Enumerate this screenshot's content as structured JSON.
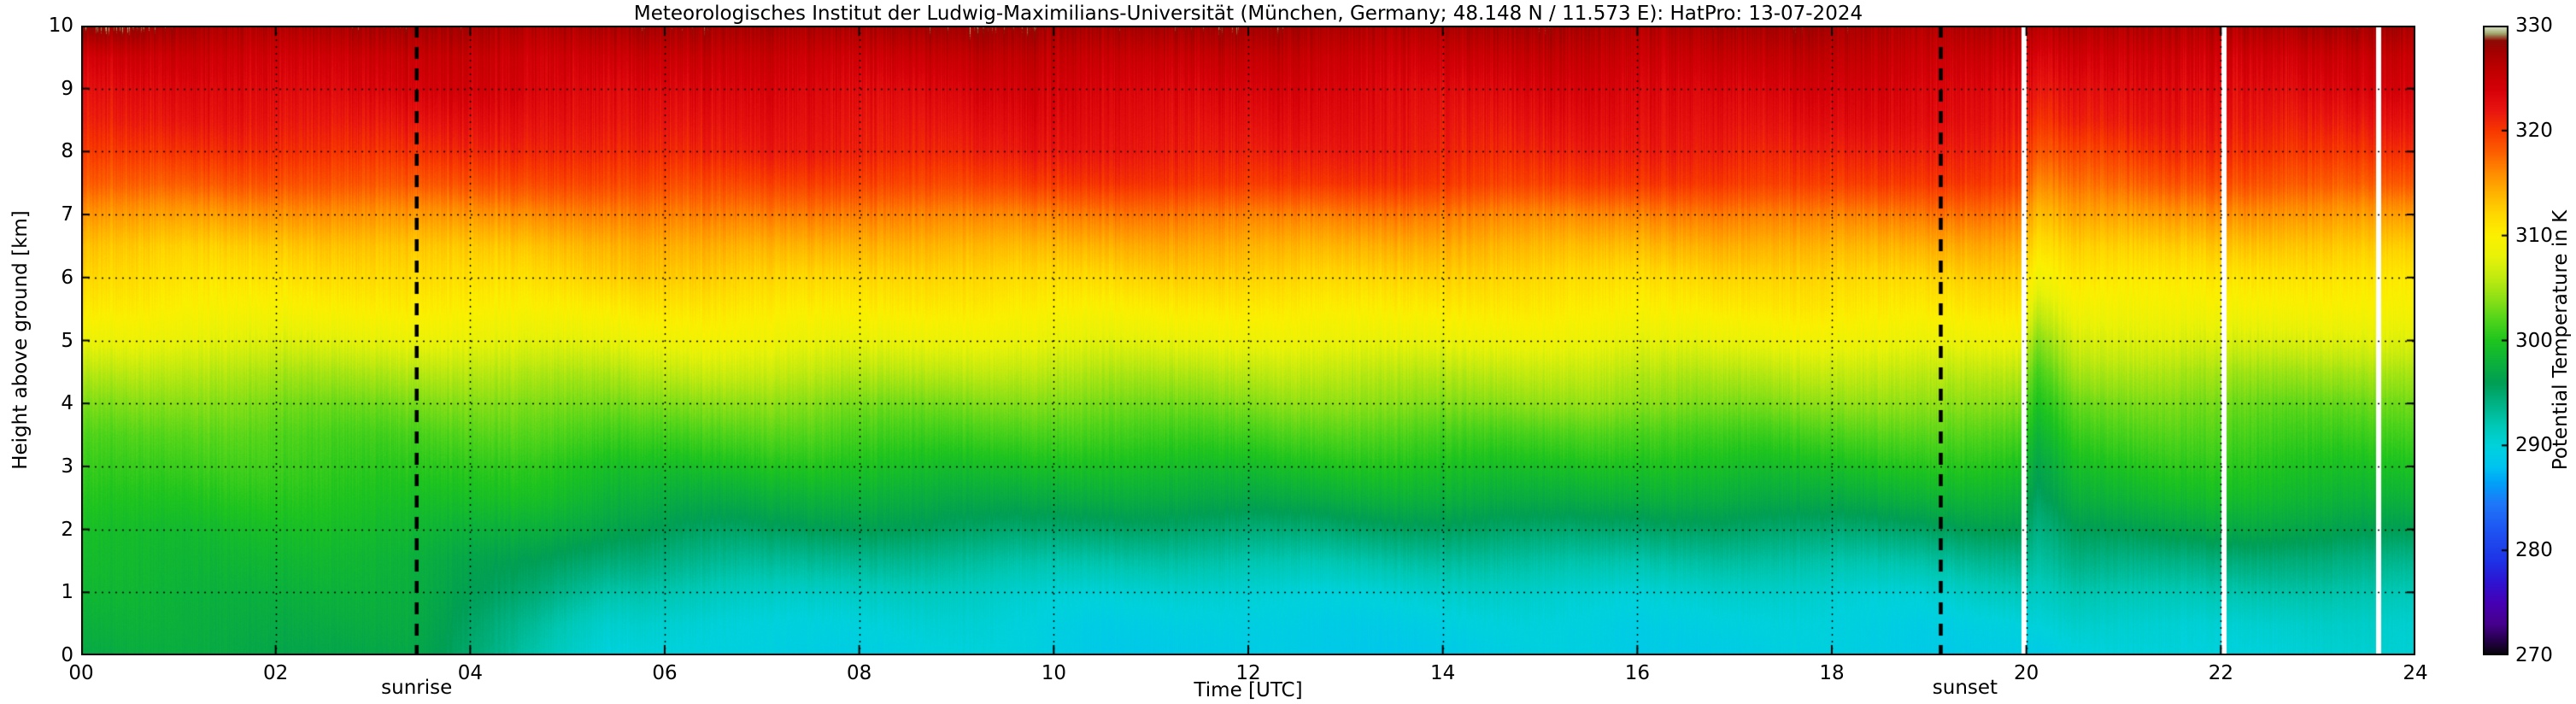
{
  "chart_data": {
    "type": "heatmap",
    "title": "Meteorologisches Institut der Ludwig-Maximilians-Universität (München, Germany; 48.148 N / 11.573 E):    HatPro: 13-07-2024",
    "xlabel": "Time [UTC]",
    "ylabel": "Height above ground [km]",
    "colorbar_label": "Potential Temperature in K",
    "x_range_utc_hours": [
      0,
      24
    ],
    "y_range_km": [
      0,
      10
    ],
    "color_range_K": [
      270,
      330
    ],
    "grid": {
      "x_interval": 2,
      "y_interval": 1,
      "style": "dotted"
    },
    "x_ticks": [
      {
        "value": 0,
        "label": "00"
      },
      {
        "value": 2,
        "label": "02"
      },
      {
        "value": 4,
        "label": "04"
      },
      {
        "value": 6,
        "label": "06"
      },
      {
        "value": 8,
        "label": "08"
      },
      {
        "value": 10,
        "label": "10"
      },
      {
        "value": 12,
        "label": "12"
      },
      {
        "value": 14,
        "label": "14"
      },
      {
        "value": 16,
        "label": "16"
      },
      {
        "value": 18,
        "label": "18"
      },
      {
        "value": 20,
        "label": "20"
      },
      {
        "value": 22,
        "label": "22"
      },
      {
        "value": 24,
        "label": "24"
      }
    ],
    "y_ticks": [
      {
        "value": 0,
        "label": "0"
      },
      {
        "value": 1,
        "label": "1"
      },
      {
        "value": 2,
        "label": "2"
      },
      {
        "value": 3,
        "label": "3"
      },
      {
        "value": 4,
        "label": "4"
      },
      {
        "value": 5,
        "label": "5"
      },
      {
        "value": 6,
        "label": "6"
      },
      {
        "value": 7,
        "label": "7"
      },
      {
        "value": 8,
        "label": "8"
      },
      {
        "value": 9,
        "label": "9"
      },
      {
        "value": 10,
        "label": "10"
      }
    ],
    "colorbar_ticks": [
      {
        "value": 270,
        "label": "270"
      },
      {
        "value": 280,
        "label": "280"
      },
      {
        "value": 290,
        "label": "290"
      },
      {
        "value": 300,
        "label": "300"
      },
      {
        "value": 310,
        "label": "310"
      },
      {
        "value": 320,
        "label": "320"
      },
      {
        "value": 330,
        "label": "330"
      }
    ],
    "events": {
      "sunrise": {
        "t": 3.45,
        "label": "sunrise",
        "line_style": "black-dashed"
      },
      "sunset": {
        "t": 19.12,
        "label": "sunset",
        "line_style": "black-dashed"
      }
    },
    "data_gaps_utc": [
      19.97,
      22.03,
      23.62
    ],
    "colormap": [
      [
        270,
        "#050505"
      ],
      [
        271.5,
        "#26004d"
      ],
      [
        273,
        "#46008c"
      ],
      [
        275,
        "#4600b4"
      ],
      [
        277,
        "#2d14d2"
      ],
      [
        279,
        "#1e32e6"
      ],
      [
        282,
        "#1e55f2"
      ],
      [
        284.5,
        "#1e78f8"
      ],
      [
        286.5,
        "#00a2f8"
      ],
      [
        288,
        "#00c4f0"
      ],
      [
        290,
        "#00d2dc"
      ],
      [
        292,
        "#00c8b4"
      ],
      [
        294,
        "#00b284"
      ],
      [
        296,
        "#009e54"
      ],
      [
        298,
        "#0cb23a"
      ],
      [
        300,
        "#1ec41e"
      ],
      [
        302,
        "#50d41a"
      ],
      [
        304,
        "#8ce016"
      ],
      [
        306,
        "#c0ea10"
      ],
      [
        308,
        "#e8f208"
      ],
      [
        310,
        "#fcf000"
      ],
      [
        312,
        "#ffd800"
      ],
      [
        314,
        "#ffb400"
      ],
      [
        316,
        "#ff8c00"
      ],
      [
        318,
        "#fc5e00"
      ],
      [
        320,
        "#f83800"
      ],
      [
        322,
        "#e81410"
      ],
      [
        324,
        "#d40008"
      ],
      [
        326,
        "#bc0000"
      ],
      [
        327.5,
        "#a40000"
      ],
      [
        328.6,
        "#8e0a04"
      ],
      [
        329.3,
        "#a0aa6e"
      ],
      [
        330,
        "#e6ecd8"
      ]
    ],
    "heights_km": [
      0,
      0.5,
      1,
      1.5,
      2,
      2.5,
      3,
      3.5,
      4,
      4.5,
      5,
      5.5,
      6,
      6.5,
      7,
      7.5,
      8,
      8.5,
      9,
      9.5,
      10
    ],
    "profiles": [
      {
        "t": 0,
        "theta": [
          297,
          297.5,
          298,
          298.5,
          299,
          300,
          301,
          302,
          303.5,
          305.5,
          308,
          310,
          311.5,
          313,
          315.5,
          318.5,
          320.5,
          322,
          323,
          324.5,
          329
        ]
      },
      {
        "t": 1.3,
        "theta": [
          297,
          297.5,
          298,
          298.5,
          299,
          300,
          301,
          302,
          303.5,
          305.5,
          308,
          310,
          311.5,
          313,
          315.5,
          318.5,
          320.5,
          322,
          323,
          324.5,
          327
        ]
      },
      {
        "t": 3.4,
        "theta": [
          296.5,
          297,
          297.5,
          298,
          299,
          300,
          301,
          302,
          303.5,
          305.5,
          308,
          310,
          311.5,
          313,
          315.5,
          318.5,
          320.5,
          322,
          323.5,
          324.5,
          327
        ]
      },
      {
        "t": 4.6,
        "theta": [
          293,
          294,
          295.5,
          296.5,
          298,
          299.5,
          300.5,
          302,
          303.5,
          305.5,
          308,
          310,
          311.5,
          313,
          315.5,
          318.5,
          320.5,
          322,
          323.5,
          324.5,
          327
        ]
      },
      {
        "t": 5.4,
        "theta": [
          290.5,
          291,
          292.5,
          294.5,
          296.5,
          298,
          299.5,
          301.5,
          303.5,
          305.5,
          308,
          310,
          312,
          313.5,
          316,
          319,
          321,
          322.5,
          323.5,
          325,
          327.5
        ]
      },
      {
        "t": 6.5,
        "theta": [
          289.5,
          290,
          291.5,
          293.5,
          295.5,
          297.5,
          299.5,
          301.5,
          303.5,
          306,
          308.5,
          310.5,
          312.5,
          314.5,
          317,
          319.5,
          321.5,
          322.5,
          323.5,
          325,
          327.5
        ]
      },
      {
        "t": 8,
        "theta": [
          289.5,
          290,
          291,
          293,
          295.5,
          297.5,
          299.5,
          301.5,
          303.5,
          306,
          308.5,
          310.5,
          312,
          314,
          316.5,
          319.5,
          321.5,
          322.5,
          323.5,
          325,
          327.5
        ]
      },
      {
        "t": 12,
        "theta": [
          289,
          289.5,
          290.5,
          292.5,
          295,
          297.5,
          299.5,
          301.5,
          303.5,
          305.5,
          308,
          310,
          312,
          314,
          316.5,
          320,
          321.5,
          322.5,
          323.5,
          325,
          327.5
        ]
      },
      {
        "t": 16,
        "theta": [
          289,
          289.5,
          290.5,
          292.5,
          295,
          297.5,
          299.5,
          301.5,
          304,
          306,
          308.5,
          310.5,
          312,
          314,
          316.5,
          320,
          321.5,
          322.5,
          323.5,
          325,
          327
        ]
      },
      {
        "t": 19,
        "theta": [
          289.5,
          290,
          291,
          293,
          295.5,
          298,
          300,
          302,
          304,
          306,
          308.5,
          310.5,
          312,
          314,
          316.5,
          319.5,
          321,
          322.5,
          323.5,
          325,
          327
        ]
      },
      {
        "t": 19.9,
        "theta": [
          289.5,
          290,
          291.5,
          293.5,
          296,
          298,
          300,
          302,
          304,
          306,
          308.5,
          310.5,
          312,
          314,
          316.5,
          319.5,
          321,
          322.5,
          323.5,
          325,
          327
        ]
      },
      {
        "t": 20.1,
        "theta": [
          289,
          290,
          291,
          292.5,
          294,
          295.5,
          297,
          298.5,
          300,
          301.5,
          303.5,
          306,
          308.5,
          311,
          313.5,
          316.5,
          319,
          321,
          322.5,
          324,
          326.5
        ]
      },
      {
        "t": 20.55,
        "theta": [
          289.5,
          290.5,
          292,
          294,
          296,
          298,
          299.5,
          301,
          302.5,
          304.5,
          306.5,
          308.5,
          310.5,
          312.5,
          315,
          317.5,
          319.5,
          321.5,
          322.5,
          324,
          326.5
        ]
      },
      {
        "t": 21.5,
        "theta": [
          290,
          290.5,
          292,
          294,
          296.5,
          298.5,
          300,
          301.5,
          303,
          305,
          307.5,
          309.5,
          311,
          313,
          315.5,
          318.5,
          320.5,
          322,
          323,
          324.5,
          327
        ]
      },
      {
        "t": 24,
        "theta": [
          290,
          290.5,
          292,
          294,
          296.5,
          298.5,
          300,
          301.5,
          303,
          305,
          307.5,
          309.5,
          311,
          313,
          315.5,
          318.5,
          320.5,
          322,
          323.5,
          324.5,
          327
        ]
      }
    ]
  }
}
